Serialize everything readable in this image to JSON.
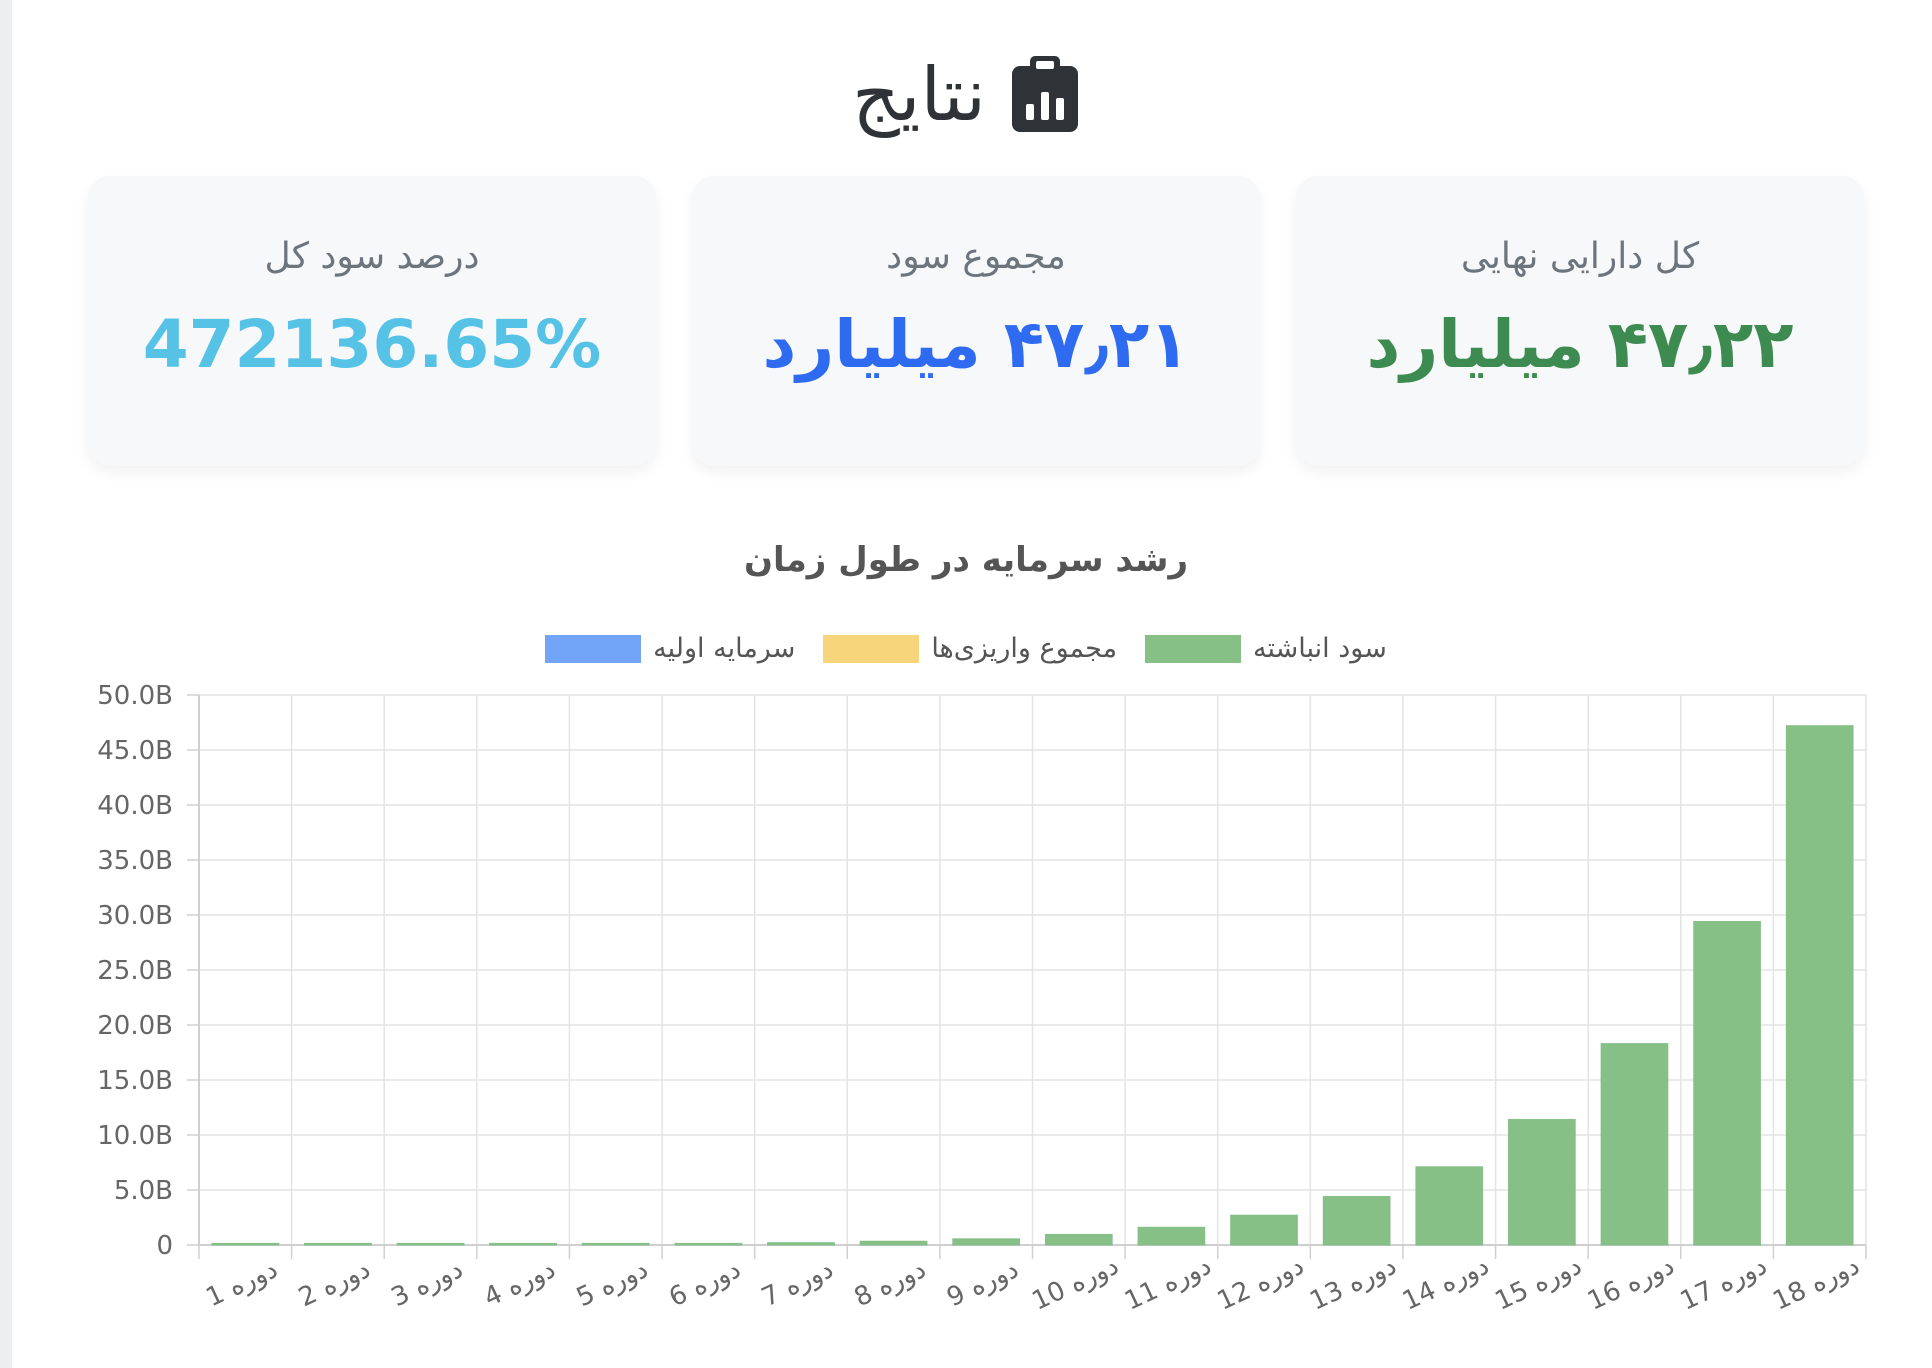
{
  "page": {
    "title": "نتایج",
    "title_icon": "clipboard-chart-icon"
  },
  "cards": [
    {
      "label": "کل دارایی نهایی",
      "value": "۴۷٫۲۲ میلیارد",
      "color": "#3d8b50"
    },
    {
      "label": "مجموع سود",
      "value": "۴۷٫۲۱ میلیارد",
      "color": "#2f6bf0"
    },
    {
      "label": "درصد سود کل",
      "value": "472136.65%",
      "color": "#56c3e6"
    }
  ],
  "chart_data": {
    "type": "bar",
    "title": "رشد سرمایه در طول زمان",
    "categories": [
      "دوره 1",
      "دوره 2",
      "دوره 3",
      "دوره 4",
      "دوره 5",
      "دوره 6",
      "دوره 7",
      "دوره 8",
      "دوره 9",
      "دوره 10",
      "دوره 11",
      "دوره 12",
      "دوره 13",
      "دوره 14",
      "دوره 15",
      "دوره 16",
      "دوره 17",
      "دوره 18"
    ],
    "series": [
      {
        "name": "سود انباشته",
        "color": "#86c087",
        "values": [
          0.01,
          0.02,
          0.03,
          0.05,
          0.07,
          0.12,
          0.2,
          0.33,
          0.55,
          0.95,
          1.6,
          2.7,
          4.4,
          7.1,
          11.4,
          18.3,
          29.4,
          47.2
        ]
      },
      {
        "name": "مجموع واریزی‌ها",
        "color": "#f7d57a",
        "values": [
          0,
          0,
          0,
          0,
          0,
          0,
          0,
          0,
          0,
          0,
          0,
          0,
          0,
          0,
          0,
          0,
          0,
          0
        ]
      },
      {
        "name": "سرمایه اولیه",
        "color": "#72a4f7",
        "values": [
          0.01,
          0.01,
          0.01,
          0.01,
          0.01,
          0.01,
          0.01,
          0.01,
          0.01,
          0.01,
          0.01,
          0.01,
          0.01,
          0.01,
          0.01,
          0.01,
          0.01,
          0.01
        ]
      }
    ],
    "y_tick_labels": [
      "0",
      "5.0B",
      "10.0B",
      "15.0B",
      "20.0B",
      "25.0B",
      "30.0B",
      "35.0B",
      "40.0B",
      "45.0B",
      "50.0B"
    ],
    "ylim": [
      0,
      50
    ],
    "y_unit": "B",
    "grid": true,
    "legend_position": "top"
  }
}
